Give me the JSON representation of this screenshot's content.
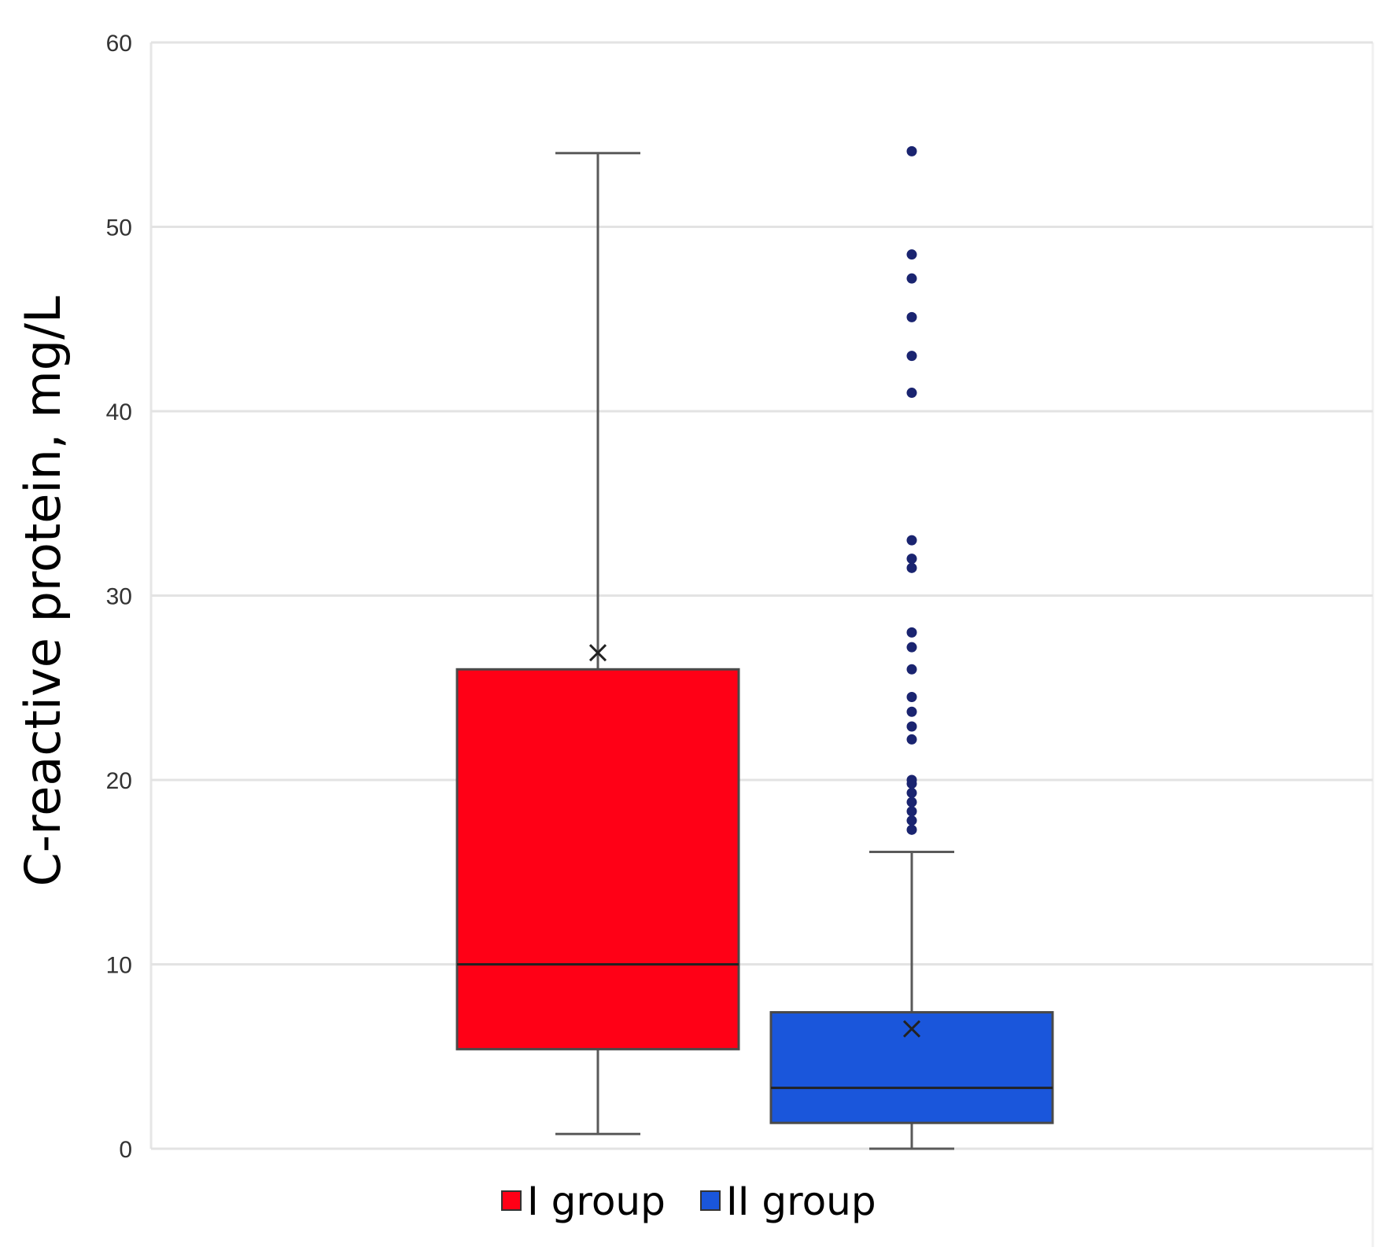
{
  "chart_data": {
    "type": "box",
    "title": "",
    "xlabel": "",
    "ylabel": "C-reactive protein, mg/L",
    "ylim": [
      0,
      60
    ],
    "yticks": [
      0,
      10,
      20,
      30,
      40,
      50,
      60
    ],
    "grid": true,
    "legend_position": "bottom",
    "series": [
      {
        "name": "I group",
        "color": "#ff0016",
        "whisker_low": 0.8,
        "q1": 5.4,
        "median": 10,
        "q3": 26,
        "whisker_high": 54,
        "mean": 26.9,
        "outliers": []
      },
      {
        "name": "II group",
        "color": "#1a56db",
        "whisker_low": 0,
        "q1": 1.4,
        "median": 3.3,
        "q3": 7.4,
        "whisker_high": 16.1,
        "mean": 6.5,
        "outliers": [
          17.3,
          17.8,
          18.3,
          18.8,
          19.3,
          19.8,
          20.0,
          22.2,
          22.9,
          23.7,
          24.5,
          26.0,
          27.2,
          28.0,
          31.5,
          32.0,
          33.0,
          41.0,
          43.0,
          45.1,
          47.2,
          48.5,
          54.1
        ]
      }
    ]
  }
}
